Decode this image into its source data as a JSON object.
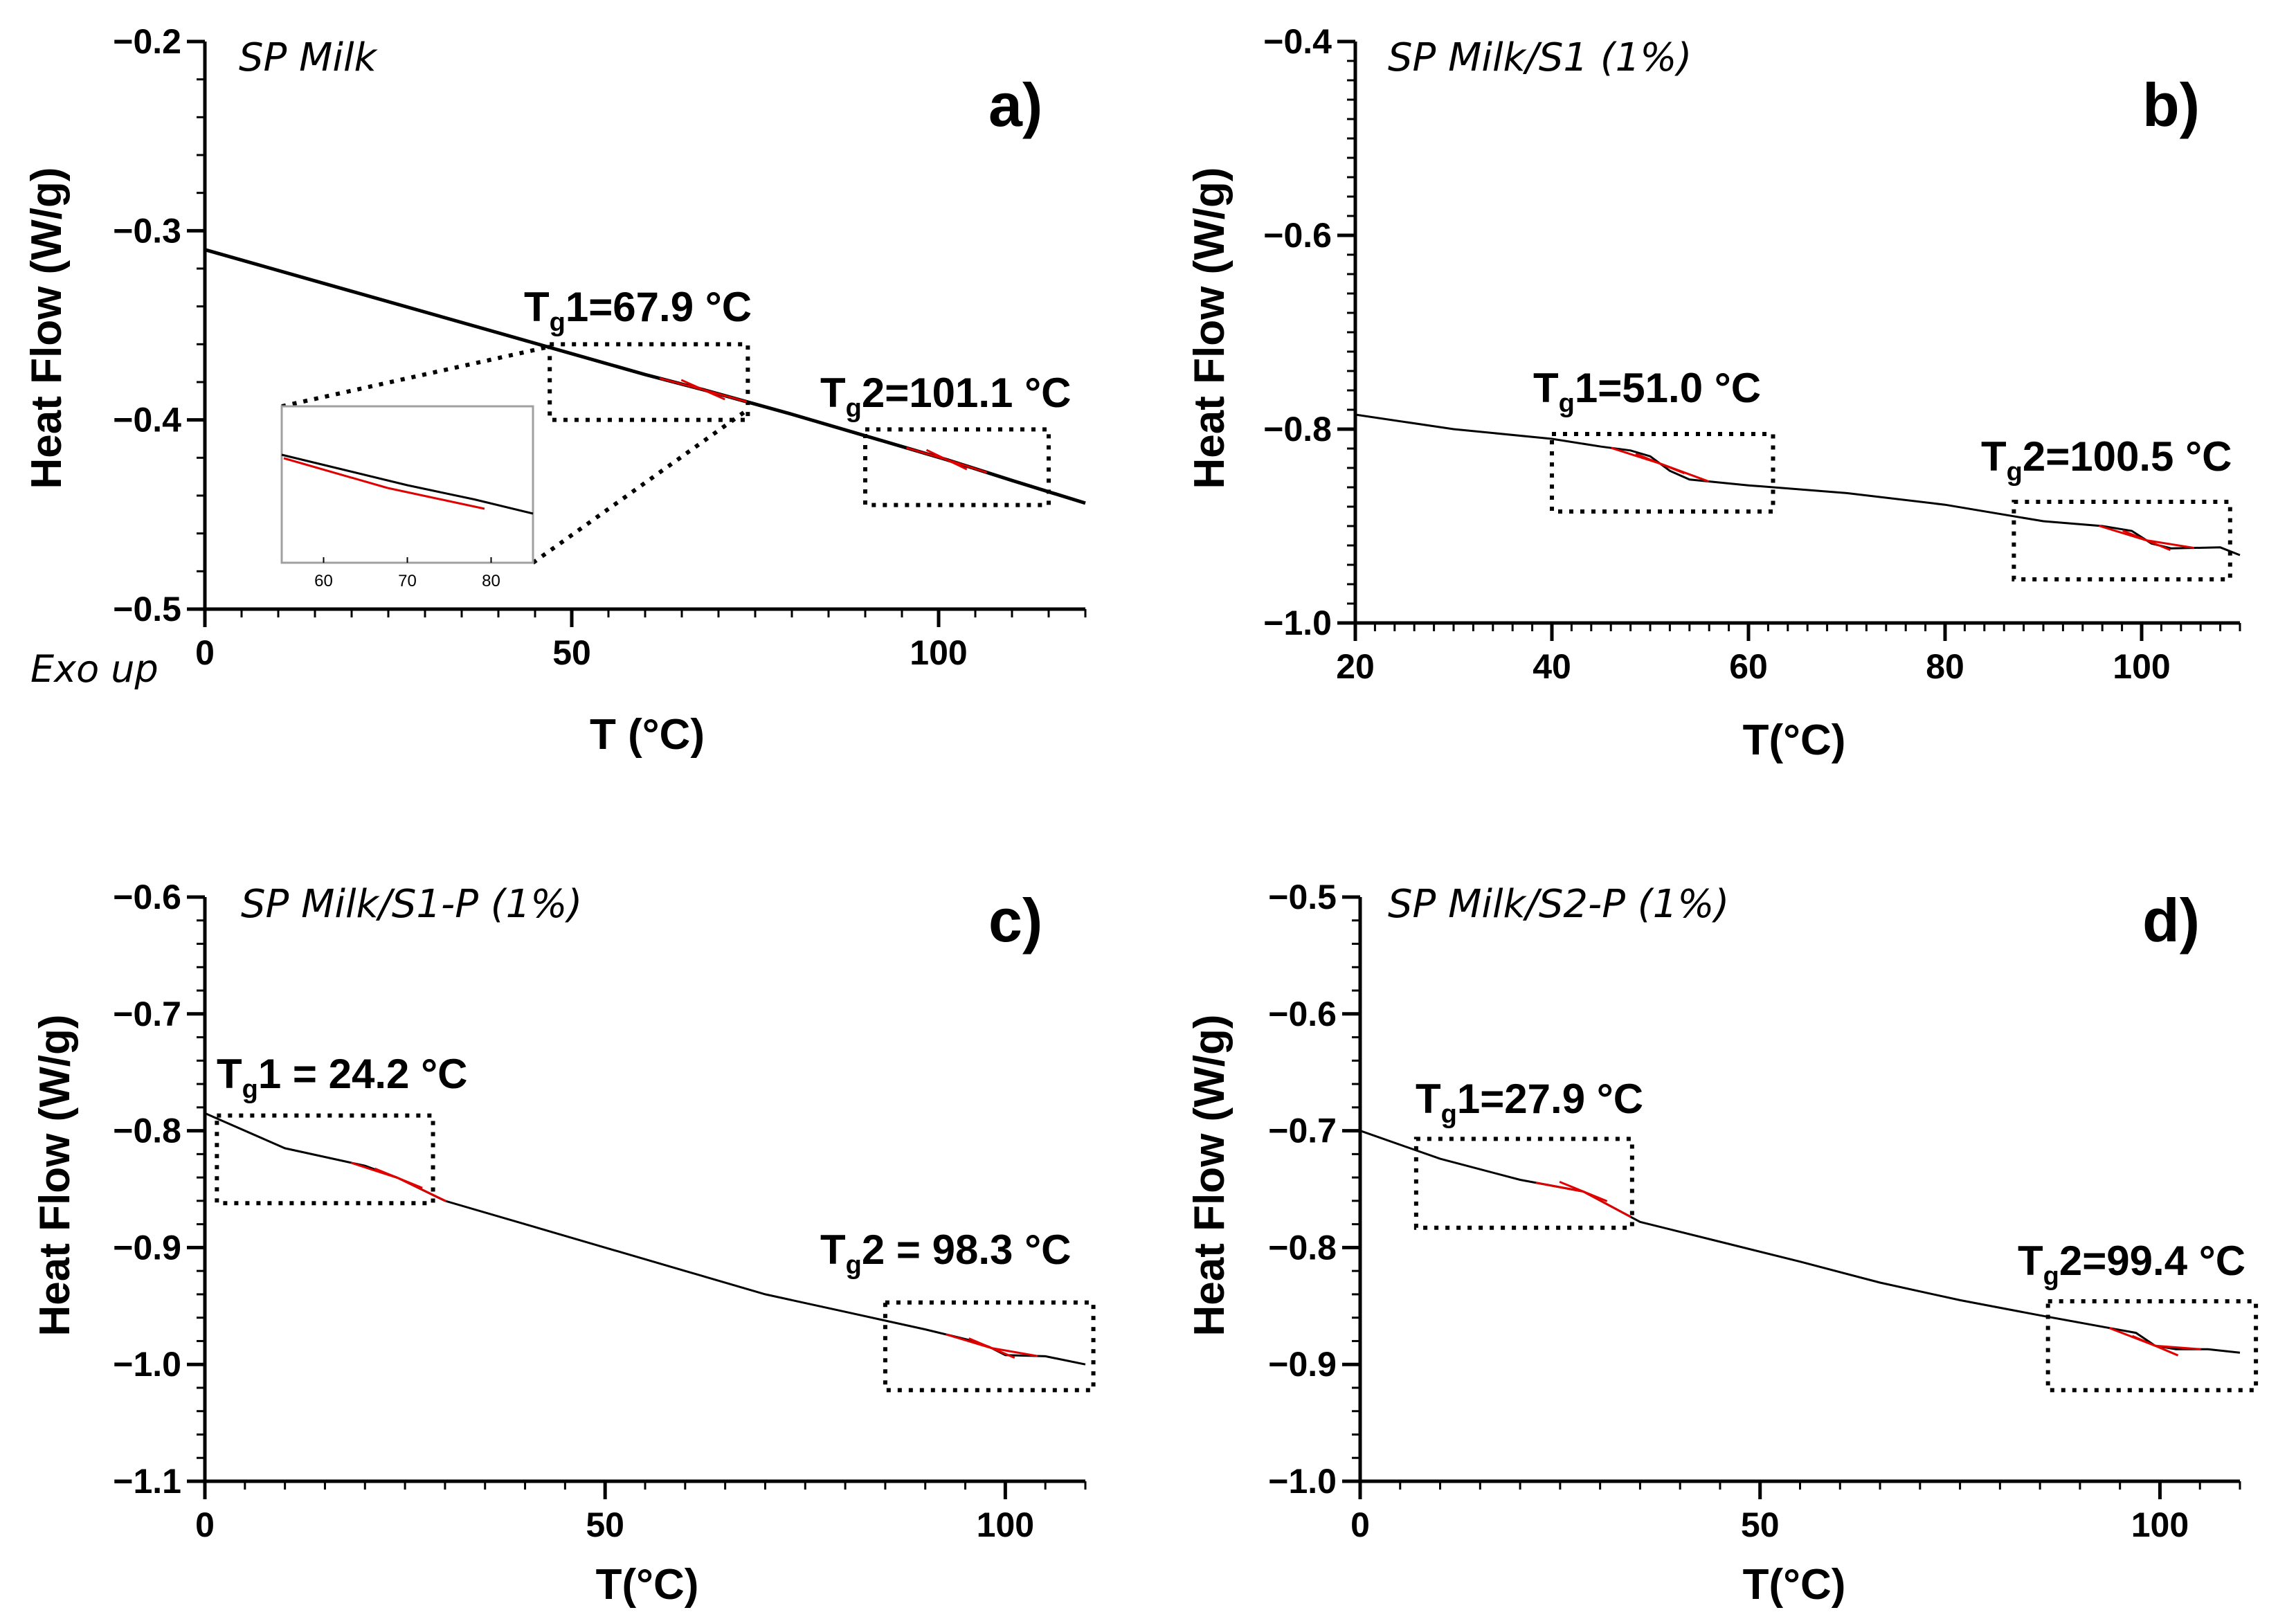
{
  "exo_label": "Exo up",
  "colors": {
    "curve": "#000000",
    "tangent": "#e00000",
    "axis": "#000000",
    "inset_frame": "#a0a0a0"
  },
  "chart_data": [
    {
      "type": "line",
      "panel_label": "a)",
      "title": "SP Milk",
      "xlabel": "T (°C)",
      "ylabel": "Heat Flow (W/g)",
      "xlim": [
        0,
        120
      ],
      "ylim": [
        -0.5,
        -0.2
      ],
      "xticks": [
        0,
        50,
        100
      ],
      "xtick_labels": [
        "0",
        "50",
        "100"
      ],
      "yticks": [
        -0.5,
        -0.4,
        -0.3,
        -0.2
      ],
      "ytick_labels": [
        "−0.5",
        "−0.4",
        "−0.3",
        "−0.2"
      ],
      "x_minor_step": 5,
      "y_minor_step": 0.02,
      "series": [
        {
          "name": "heat flow",
          "x": [
            0,
            20,
            40,
            60,
            67.9,
            80,
            101.1,
            110,
            120
          ],
          "y": [
            -0.31,
            -0.332,
            -0.354,
            -0.376,
            -0.384,
            -0.397,
            -0.421,
            -0.432,
            -0.444
          ]
        }
      ],
      "transitions": [
        {
          "label_main": "T",
          "label_sub": "g",
          "label_rest": "1=67.9 °C",
          "value": 67.9,
          "box_x": [
            47,
            74
          ],
          "box_y": [
            -0.4,
            -0.36
          ]
        },
        {
          "label_main": "T",
          "label_sub": "g",
          "label_rest": "2=101.1 °C",
          "value": 101.1,
          "box_x": [
            90,
            115
          ],
          "box_y": [
            -0.445,
            -0.405
          ]
        }
      ],
      "inset": {
        "xlim": [
          55,
          85
        ],
        "xticks": [
          60,
          70,
          80
        ],
        "xtick_labels": [
          "60",
          "70",
          "80"
        ],
        "x": [
          55,
          62,
          70,
          78,
          85
        ],
        "y": [
          -0.371,
          -0.378,
          -0.386,
          -0.393,
          -0.4
        ]
      }
    },
    {
      "type": "line",
      "panel_label": "b)",
      "title": "SP Milk/S1 (1%)",
      "xlabel": "T(°C)",
      "ylabel": "Heat Flow (W/g)",
      "xlim": [
        20,
        110
      ],
      "ylim": [
        -1.0,
        -0.4
      ],
      "xticks": [
        20,
        40,
        60,
        80,
        100
      ],
      "xtick_labels": [
        "20",
        "40",
        "60",
        "80",
        "100"
      ],
      "yticks": [
        -1.0,
        -0.8,
        -0.6,
        -0.4
      ],
      "ytick_labels": [
        "−1.0",
        "−0.8",
        "−0.6",
        "−0.4"
      ],
      "x_minor_step": 2,
      "y_minor_step": 0.02,
      "series": [
        {
          "name": "heat flow",
          "x": [
            20,
            30,
            40,
            45,
            48,
            50,
            52,
            54,
            60,
            70,
            80,
            90,
            96,
            99,
            101,
            103,
            108,
            110
          ],
          "y": [
            -0.785,
            -0.8,
            -0.81,
            -0.818,
            -0.822,
            -0.828,
            -0.843,
            -0.852,
            -0.858,
            -0.866,
            -0.878,
            -0.895,
            -0.9,
            -0.905,
            -0.918,
            -0.923,
            -0.922,
            -0.93
          ]
        }
      ],
      "transitions": [
        {
          "label_main": "T",
          "label_sub": "g",
          "label_rest": "1=51.0 °C",
          "value": 51.0,
          "box_x": [
            40,
            62.5
          ],
          "box_y": [
            -0.885,
            -0.805
          ]
        },
        {
          "label_main": "T",
          "label_sub": "g",
          "label_rest": "2=100.5 °C",
          "value": 100.5,
          "box_x": [
            87,
            109
          ],
          "box_y": [
            -0.955,
            -0.875
          ]
        }
      ]
    },
    {
      "type": "line",
      "panel_label": "c)",
      "title": "SP Milk/S1-P (1%)",
      "xlabel": "T(°C)",
      "ylabel": "Heat Flow (W/g)",
      "xlim": [
        0,
        110
      ],
      "ylim": [
        -1.1,
        -0.6
      ],
      "xticks": [
        0,
        50,
        100
      ],
      "xtick_labels": [
        "0",
        "50",
        "100"
      ],
      "yticks": [
        -1.1,
        -1.0,
        -0.9,
        -0.8,
        -0.7,
        -0.6
      ],
      "ytick_labels": [
        "−1.1",
        "−1.0",
        "−0.9",
        "−0.8",
        "−0.7",
        "−0.6"
      ],
      "x_minor_step": 5,
      "y_minor_step": 0.02,
      "series": [
        {
          "name": "heat flow",
          "x": [
            0,
            10,
            20,
            24,
            30,
            40,
            50,
            60,
            70,
            80,
            90,
            96,
            98,
            100,
            105,
            110
          ],
          "y": [
            -0.785,
            -0.815,
            -0.83,
            -0.84,
            -0.86,
            -0.88,
            -0.9,
            -0.92,
            -0.94,
            -0.955,
            -0.97,
            -0.98,
            -0.985,
            -0.992,
            -0.993,
            -1.0
          ]
        }
      ],
      "transitions": [
        {
          "label_main": "T",
          "label_sub": "g",
          "label_rest": "1 = 24.2 °C",
          "value": 24.2,
          "box_x": [
            1.5,
            28.5
          ],
          "box_y": [
            -0.862,
            -0.787
          ]
        },
        {
          "label_main": "T",
          "label_sub": "g",
          "label_rest": "2 = 98.3 °C",
          "value": 98.3,
          "box_x": [
            85,
            111
          ],
          "box_y": [
            -1.022,
            -0.947
          ]
        }
      ]
    },
    {
      "type": "line",
      "panel_label": "d)",
      "title": "SP Milk/S2-P (1%)",
      "xlabel": "T(°C)",
      "ylabel": "Heat Flow (W/g)",
      "xlim": [
        0,
        110
      ],
      "ylim": [
        -1.0,
        -0.5
      ],
      "xticks": [
        0,
        50,
        100
      ],
      "xtick_labels": [
        "0",
        "50",
        "100"
      ],
      "yticks": [
        -1.0,
        -0.9,
        -0.8,
        -0.7,
        -0.6,
        -0.5
      ],
      "ytick_labels": [
        "−1.0",
        "−0.9",
        "−0.8",
        "−0.7",
        "−0.6",
        "−0.5"
      ],
      "x_minor_step": 5,
      "y_minor_step": 0.02,
      "series": [
        {
          "name": "heat flow",
          "x": [
            0,
            10,
            20,
            27.9,
            35,
            45,
            55,
            65,
            75,
            85,
            93,
            97,
            99.4,
            102,
            106,
            110
          ],
          "y": [
            -0.7,
            -0.724,
            -0.742,
            -0.752,
            -0.778,
            -0.795,
            -0.812,
            -0.83,
            -0.845,
            -0.858,
            -0.868,
            -0.873,
            -0.884,
            -0.887,
            -0.887,
            -0.89
          ]
        }
      ],
      "transitions": [
        {
          "label_main": "T",
          "label_sub": "g",
          "label_rest": "1=27.9 °C",
          "value": 27.9,
          "box_x": [
            7,
            34
          ],
          "box_y": [
            -0.783,
            -0.707
          ]
        },
        {
          "label_main": "T",
          "label_sub": "g",
          "label_rest": "2=99.4 °C",
          "value": 99.4,
          "box_x": [
            86,
            112
          ],
          "box_y": [
            -0.922,
            -0.846
          ]
        }
      ]
    }
  ]
}
